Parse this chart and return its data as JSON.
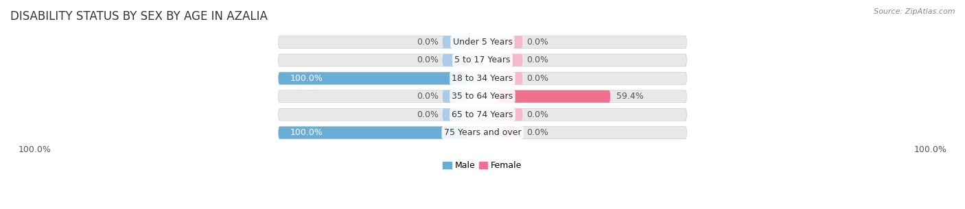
{
  "title": "DISABILITY STATUS BY SEX BY AGE IN AZALIA",
  "source": "Source: ZipAtlas.com",
  "categories": [
    "Under 5 Years",
    "5 to 17 Years",
    "18 to 34 Years",
    "35 to 64 Years",
    "65 to 74 Years",
    "75 Years and over"
  ],
  "male_values": [
    0.0,
    0.0,
    100.0,
    0.0,
    0.0,
    100.0
  ],
  "female_values": [
    0.0,
    0.0,
    0.0,
    59.4,
    0.0,
    0.0
  ],
  "male_color": "#6aaed6",
  "female_color": "#f07090",
  "male_color_stub": "#aacce8",
  "female_color_stub": "#f5b8cc",
  "bar_bg_color": "#e8e8e8",
  "bar_bg_border": "#d0d0d0",
  "axis_label_left": "100.0%",
  "axis_label_right": "100.0%",
  "legend_male": "Male",
  "legend_female": "Female",
  "title_fontsize": 12,
  "label_fontsize": 9,
  "tick_fontsize": 9,
  "source_fontsize": 8
}
